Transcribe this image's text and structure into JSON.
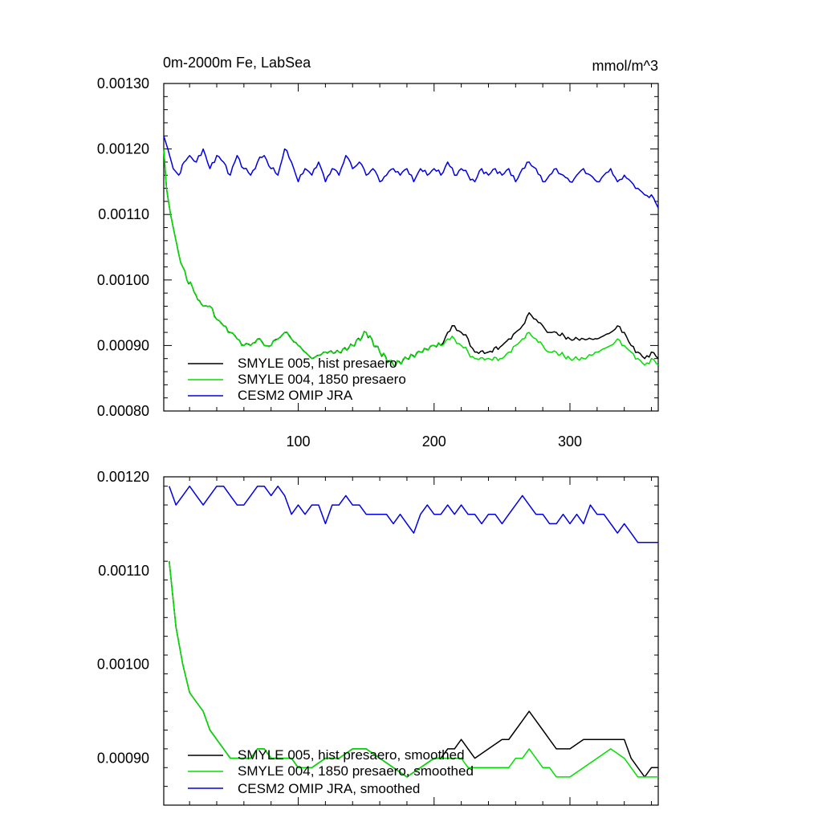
{
  "chart_data": [
    {
      "type": "line",
      "title": "0m-2000m Fe, LabSea",
      "units": "mmol/m^3",
      "xlim": [
        1,
        365
      ],
      "ylim": [
        0.0008,
        0.0013
      ],
      "yticks": [
        "0.00080",
        "0.00090",
        "0.00100",
        "0.00110",
        "0.00120",
        "0.00130"
      ],
      "xticks": [
        "100",
        "200",
        "300"
      ],
      "legend_position": "bottom-left",
      "series": [
        {
          "name": "SMYLE 005, hist presaero",
          "color": "#000000",
          "smooth": false,
          "x": [
            1,
            3,
            6,
            9,
            12,
            15,
            18,
            22,
            26,
            30,
            35,
            40,
            45,
            50,
            55,
            60,
            65,
            70,
            75,
            80,
            85,
            90,
            95,
            100,
            110,
            120,
            130,
            140,
            150,
            160,
            170,
            180,
            190,
            200,
            205,
            210,
            215,
            220,
            225,
            230,
            240,
            250,
            255,
            260,
            265,
            270,
            275,
            280,
            285,
            290,
            300,
            310,
            320,
            330,
            335,
            340,
            345,
            350,
            355,
            360,
            365
          ],
          "y": [
            0.0012,
            0.00114,
            0.0011,
            0.00107,
            0.00104,
            0.00102,
            0.001,
            0.00099,
            0.00097,
            0.00096,
            0.00096,
            0.00094,
            0.00093,
            0.00092,
            0.00091,
            0.0009,
            0.0009,
            0.00091,
            0.0009,
            0.0009,
            0.00091,
            0.00092,
            0.00091,
            0.0009,
            0.00088,
            0.00089,
            0.00089,
            0.0009,
            0.00092,
            0.00089,
            0.00087,
            0.00088,
            0.00089,
            0.0009,
            0.0009,
            0.00092,
            0.00093,
            0.00092,
            0.00091,
            0.00089,
            0.00089,
            0.0009,
            0.00091,
            0.00092,
            0.00093,
            0.00095,
            0.00094,
            0.00093,
            0.00092,
            0.00092,
            0.00091,
            0.00091,
            0.00091,
            0.00092,
            0.00093,
            0.00092,
            0.0009,
            0.00089,
            0.00088,
            0.00089,
            0.00088
          ]
        },
        {
          "name": "SMYLE 004, 1850 presaero",
          "color": "#00e000",
          "smooth": false,
          "x": [
            1,
            3,
            6,
            9,
            12,
            15,
            18,
            22,
            26,
            30,
            35,
            40,
            45,
            50,
            55,
            60,
            65,
            70,
            75,
            80,
            85,
            90,
            95,
            100,
            110,
            120,
            130,
            140,
            150,
            160,
            170,
            180,
            190,
            200,
            205,
            210,
            215,
            220,
            225,
            230,
            240,
            250,
            255,
            260,
            265,
            270,
            275,
            280,
            285,
            290,
            300,
            310,
            320,
            330,
            335,
            340,
            345,
            350,
            355,
            360,
            365
          ],
          "y": [
            0.0012,
            0.00114,
            0.0011,
            0.00107,
            0.00104,
            0.00102,
            0.001,
            0.00099,
            0.00097,
            0.00096,
            0.00096,
            0.00094,
            0.00093,
            0.00092,
            0.00091,
            0.0009,
            0.0009,
            0.00091,
            0.0009,
            0.0009,
            0.00091,
            0.00092,
            0.00091,
            0.0009,
            0.00088,
            0.00089,
            0.00089,
            0.0009,
            0.00092,
            0.00089,
            0.00087,
            0.00088,
            0.00089,
            0.0009,
            0.0009,
            0.00091,
            0.00091,
            0.0009,
            0.00089,
            0.00088,
            0.00088,
            0.00088,
            0.00089,
            0.0009,
            0.00091,
            0.00092,
            0.00091,
            0.0009,
            0.00089,
            0.00089,
            0.00088,
            0.00088,
            0.00089,
            0.0009,
            0.00091,
            0.0009,
            0.00089,
            0.00088,
            0.00087,
            0.00088,
            0.00087
          ]
        },
        {
          "name": "CESM2 OMIP JRA",
          "color": "#0000e6",
          "smooth": false,
          "x": [
            1,
            4,
            8,
            12,
            16,
            20,
            25,
            30,
            35,
            40,
            45,
            50,
            55,
            60,
            65,
            70,
            75,
            80,
            85,
            90,
            95,
            100,
            105,
            110,
            115,
            120,
            125,
            130,
            135,
            140,
            145,
            150,
            155,
            160,
            165,
            170,
            175,
            180,
            185,
            190,
            195,
            200,
            205,
            210,
            215,
            220,
            225,
            230,
            235,
            240,
            245,
            250,
            255,
            260,
            265,
            270,
            275,
            280,
            285,
            290,
            295,
            300,
            305,
            310,
            315,
            320,
            325,
            330,
            335,
            340,
            345,
            350,
            355,
            360,
            365
          ],
          "y": [
            0.00122,
            0.0012,
            0.00117,
            0.00116,
            0.00118,
            0.00119,
            0.00118,
            0.0012,
            0.00117,
            0.00119,
            0.00118,
            0.00116,
            0.00119,
            0.00117,
            0.00116,
            0.00118,
            0.00119,
            0.00117,
            0.00116,
            0.0012,
            0.00118,
            0.00115,
            0.00117,
            0.00116,
            0.00118,
            0.00115,
            0.00117,
            0.00116,
            0.00119,
            0.00117,
            0.00118,
            0.00116,
            0.00117,
            0.00115,
            0.00116,
            0.00117,
            0.00116,
            0.00117,
            0.00115,
            0.00117,
            0.00116,
            0.00117,
            0.00116,
            0.00118,
            0.00116,
            0.00117,
            0.00116,
            0.00115,
            0.00117,
            0.00116,
            0.00117,
            0.00116,
            0.00117,
            0.00115,
            0.00117,
            0.00118,
            0.00117,
            0.00115,
            0.00116,
            0.00117,
            0.00116,
            0.00115,
            0.00116,
            0.00117,
            0.00116,
            0.00115,
            0.00116,
            0.00117,
            0.00115,
            0.00116,
            0.00115,
            0.00114,
            0.00113,
            0.00113,
            0.00111
          ]
        }
      ],
      "legend": [
        "SMYLE 005, hist presaero",
        "SMYLE 004, 1850 presaero",
        "CESM2 OMIP JRA"
      ]
    },
    {
      "type": "line",
      "title": "",
      "xlim": [
        1,
        365
      ],
      "ylim": [
        0.00085,
        0.0012
      ],
      "yticks": [
        "0.00090",
        "0.00100",
        "0.00110",
        "0.00120"
      ],
      "xticks": [],
      "legend_position": "bottom-left",
      "series": [
        {
          "name": "SMYLE 005, hist presaero, smoothed",
          "color": "#000000",
          "smooth": true,
          "x": [
            5,
            10,
            15,
            20,
            25,
            30,
            35,
            40,
            45,
            50,
            55,
            60,
            65,
            70,
            75,
            80,
            85,
            90,
            95,
            100,
            110,
            120,
            130,
            140,
            150,
            160,
            170,
            180,
            190,
            200,
            205,
            210,
            215,
            220,
            225,
            230,
            240,
            250,
            255,
            260,
            265,
            270,
            275,
            280,
            285,
            290,
            300,
            310,
            320,
            330,
            340,
            345,
            350,
            355,
            360,
            365
          ],
          "y": [
            0.00111,
            0.00104,
            0.001,
            0.00097,
            0.00096,
            0.00095,
            0.00093,
            0.00092,
            0.00091,
            0.0009,
            0.0009,
            0.0009,
            0.0009,
            0.00091,
            0.00091,
            0.0009,
            0.0009,
            0.0009,
            0.0009,
            0.00089,
            0.00089,
            0.0009,
            0.0009,
            0.00091,
            0.00091,
            0.0009,
            0.00089,
            0.00088,
            0.00089,
            0.0009,
            0.0009,
            0.00091,
            0.00091,
            0.00092,
            0.00091,
            0.0009,
            0.00091,
            0.00092,
            0.00092,
            0.00093,
            0.00094,
            0.00095,
            0.00094,
            0.00093,
            0.00092,
            0.00091,
            0.00091,
            0.00092,
            0.00092,
            0.00092,
            0.00092,
            0.0009,
            0.00089,
            0.00088,
            0.00089,
            0.00089
          ]
        },
        {
          "name": "SMYLE 004, 1850 presaero, smoothed",
          "color": "#00e000",
          "smooth": true,
          "x": [
            5,
            10,
            15,
            20,
            25,
            30,
            35,
            40,
            45,
            50,
            55,
            60,
            65,
            70,
            75,
            80,
            85,
            90,
            95,
            100,
            110,
            120,
            130,
            140,
            150,
            160,
            170,
            180,
            190,
            200,
            205,
            210,
            215,
            220,
            225,
            230,
            240,
            250,
            255,
            260,
            265,
            270,
            275,
            280,
            285,
            290,
            300,
            310,
            320,
            330,
            340,
            345,
            350,
            355,
            360,
            365
          ],
          "y": [
            0.00111,
            0.00104,
            0.001,
            0.00097,
            0.00096,
            0.00095,
            0.00093,
            0.00092,
            0.00091,
            0.0009,
            0.0009,
            0.0009,
            0.0009,
            0.00091,
            0.00091,
            0.0009,
            0.0009,
            0.0009,
            0.0009,
            0.00089,
            0.00089,
            0.0009,
            0.0009,
            0.00091,
            0.00091,
            0.0009,
            0.00089,
            0.00088,
            0.00089,
            0.0009,
            0.0009,
            0.0009,
            0.0009,
            0.0009,
            0.00089,
            0.00089,
            0.00089,
            0.00089,
            0.00089,
            0.0009,
            0.0009,
            0.00091,
            0.0009,
            0.00089,
            0.00089,
            0.00088,
            0.00088,
            0.00089,
            0.0009,
            0.00091,
            0.0009,
            0.00089,
            0.00088,
            0.00088,
            0.00088,
            0.00088
          ]
        },
        {
          "name": "CESM2 OMIP JRA, smoothed",
          "color": "#0000e6",
          "smooth": true,
          "x": [
            5,
            10,
            15,
            20,
            25,
            30,
            35,
            40,
            45,
            50,
            55,
            60,
            65,
            70,
            75,
            80,
            85,
            90,
            95,
            100,
            105,
            110,
            115,
            120,
            125,
            130,
            135,
            140,
            145,
            150,
            155,
            160,
            165,
            170,
            175,
            180,
            185,
            190,
            195,
            200,
            205,
            210,
            215,
            220,
            225,
            230,
            235,
            240,
            245,
            250,
            255,
            260,
            265,
            270,
            275,
            280,
            285,
            290,
            295,
            300,
            305,
            310,
            315,
            320,
            325,
            330,
            335,
            340,
            345,
            350,
            355,
            360,
            365
          ],
          "y": [
            0.00119,
            0.00117,
            0.00118,
            0.00119,
            0.00118,
            0.00117,
            0.00118,
            0.00119,
            0.00119,
            0.00118,
            0.00117,
            0.00117,
            0.00118,
            0.00119,
            0.00119,
            0.00118,
            0.00119,
            0.00118,
            0.00116,
            0.00117,
            0.00116,
            0.00117,
            0.00117,
            0.00115,
            0.00117,
            0.00117,
            0.00118,
            0.00117,
            0.00117,
            0.00116,
            0.00116,
            0.00116,
            0.00116,
            0.00115,
            0.00116,
            0.00115,
            0.00114,
            0.00116,
            0.00117,
            0.00116,
            0.00116,
            0.00117,
            0.00116,
            0.00117,
            0.00116,
            0.00116,
            0.00115,
            0.00116,
            0.00116,
            0.00115,
            0.00116,
            0.00117,
            0.00118,
            0.00117,
            0.00116,
            0.00116,
            0.00115,
            0.00115,
            0.00116,
            0.00115,
            0.00116,
            0.00115,
            0.00117,
            0.00116,
            0.00116,
            0.00115,
            0.00114,
            0.00115,
            0.00114,
            0.00113,
            0.00113,
            0.00113,
            0.00113
          ]
        }
      ],
      "legend": [
        "SMYLE 005, hist presaero, smoothed",
        "SMYLE 004, 1850 presaero, smoothed",
        "CESM2 OMIP JRA, smoothed"
      ]
    }
  ]
}
